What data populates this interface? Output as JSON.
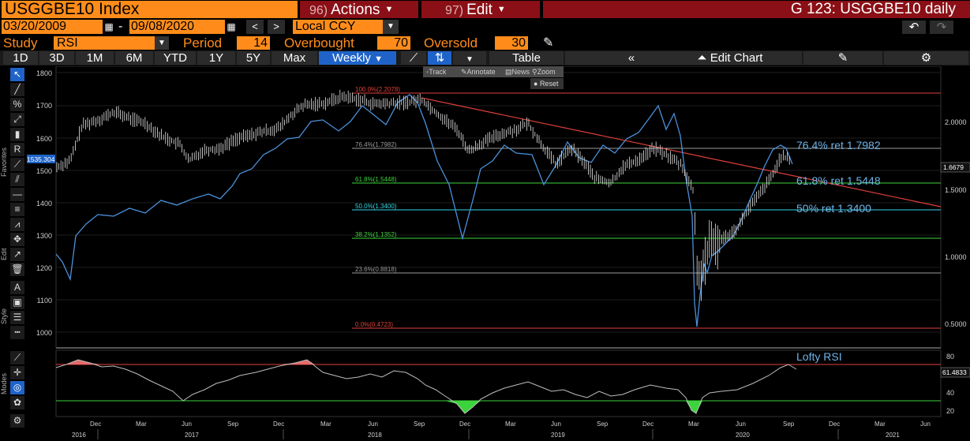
{
  "header": {
    "ticker": "USGGBE10 Index",
    "actions_num": "96)",
    "actions_label": "Actions",
    "edit_num": "97)",
    "edit_label": "Edit",
    "graph_title": "G 123: USGGBE10 daily"
  },
  "dates": {
    "start": "03/20/2009",
    "end": "09/08/2020",
    "currency": "Local CCY"
  },
  "study": {
    "study_label": "Study",
    "study_value": "RSI",
    "period_label": "Period",
    "period_value": "14",
    "overbought_label": "Overbought",
    "overbought_value": "70",
    "oversold_label": "Oversold",
    "oversold_value": "30"
  },
  "tabs": [
    "1D",
    "3D",
    "1M",
    "6M",
    "YTD",
    "1Y",
    "5Y",
    "Max"
  ],
  "toolbar": {
    "frequency": "Weekly",
    "table_label": "Table",
    "edit_chart_label": "Edit Chart"
  },
  "annotate_bar": {
    "track": "Track",
    "annotate": "Annotate",
    "news": "News",
    "zoom": "Zoom",
    "reset": "Reset"
  },
  "sidebar": {
    "favorites_label": "Favorites",
    "edit_label": "Edit",
    "style_label": "Style",
    "modes_label": "Modes",
    "price_tag": "1535.304",
    "tool_icons": [
      "cursor-icon",
      "line-icon",
      "percent-icon",
      "trend-line-icon",
      "bar-icon",
      "text-r-icon",
      "ray-icon",
      "channel-icon",
      "hline-icon",
      "fib-icon",
      "move-icon",
      "pointer-icon",
      "trash-icon",
      "font-icon",
      "fill-icon",
      "width-icon",
      "dash-icon",
      "ruler-icon",
      "target-icon",
      "palette-icon",
      "settings-icon"
    ]
  },
  "fib_labels": {
    "f100": "100.0%(2.2078)",
    "f764": "76.4%(1.7982)",
    "f618": "61.8%(1.5448)",
    "f500": "50.0%(1.3400)",
    "f382": "38.2%(1.1352)",
    "f236": "23.6%(0.8818)",
    "f000": "0.0%(0.4723)"
  },
  "legend": {
    "r764": "76.4% ret 1.7982",
    "r618": "61.8% ret 1.5448",
    "r500": "50% ret 1.3400",
    "rsi": "Lofty RSI"
  },
  "axes": {
    "left_ticks": [
      "1800",
      "1700",
      "1600",
      "1500",
      "1400",
      "1300",
      "1200",
      "1100",
      "1000"
    ],
    "right_ticks": [
      "2.0000",
      "1.5000",
      "1.0000",
      "0.5000"
    ],
    "right_last": "1.6679",
    "rsi_ticks": [
      "80",
      "60",
      "40",
      "20"
    ],
    "rsi_last": "61.4833",
    "months": [
      "Dec",
      "Mar",
      "Jun",
      "Sep",
      "Dec",
      "Mar",
      "Jun",
      "Sep",
      "Dec",
      "Mar",
      "Jun",
      "Sep",
      "Dec",
      "Mar",
      "Jun",
      "Sep",
      "Dec",
      "Mar",
      "Jun"
    ],
    "years": [
      "2016",
      "2017",
      "2018",
      "2019",
      "2020",
      "2021"
    ]
  },
  "colors": {
    "orange": "#ff8c1a",
    "maroon": "#8b0f16",
    "blue_line": "#4a90d9",
    "trend": "#e0403a",
    "fib_red": "#e0403a",
    "fib_green": "#3cd43c",
    "fib_cyan": "#35d6e6",
    "fib_gray": "#9a9a9a"
  }
}
